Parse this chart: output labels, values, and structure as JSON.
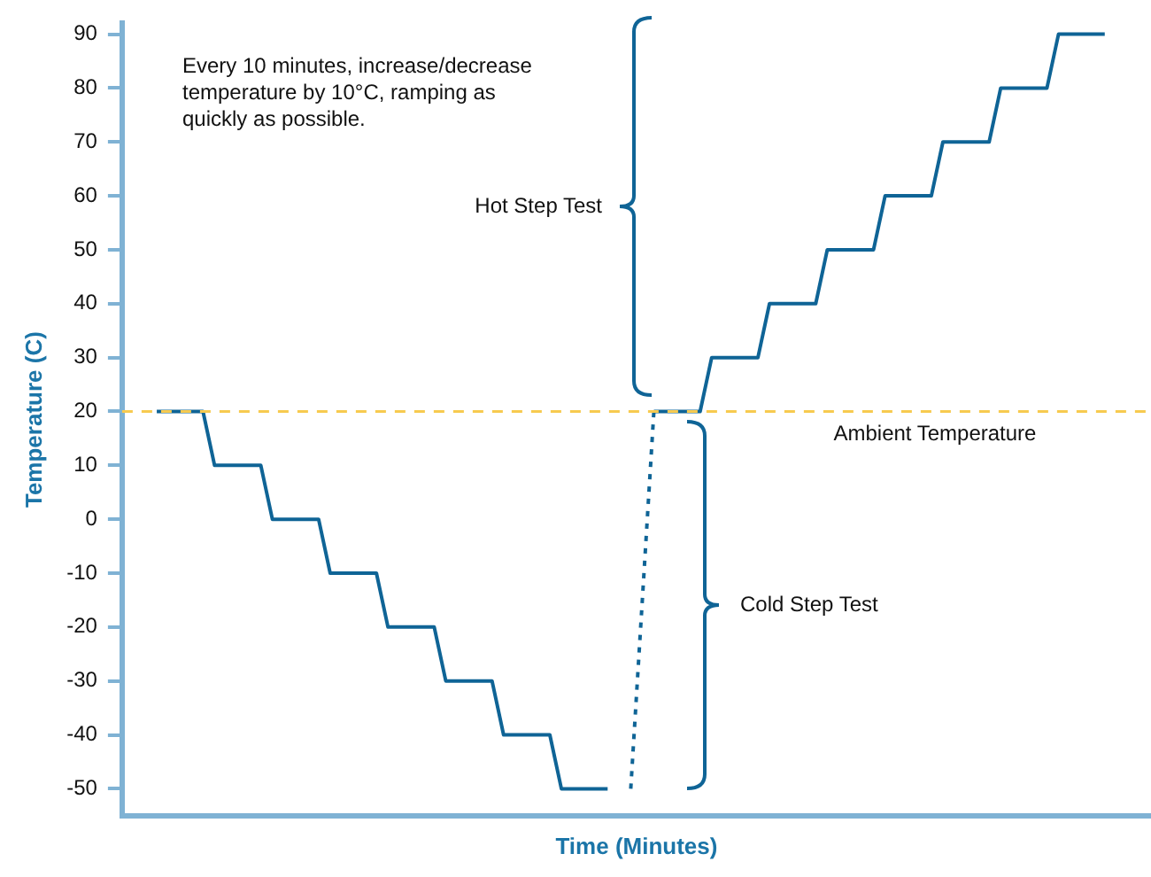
{
  "chart_data": {
    "type": "line",
    "xlabel": "Time (Minutes)",
    "ylabel": "Temperature (C)",
    "categories": [
      null,
      null,
      null,
      null,
      null,
      null,
      null,
      null,
      null,
      null,
      null,
      null,
      null,
      null,
      null,
      null,
      null,
      null,
      null,
      null,
      null,
      null,
      null,
      null,
      null,
      null,
      null,
      null,
      null,
      null,
      null,
      null,
      null,
      null,
      null,
      null,
      null,
      null,
      null,
      null,
      null,
      null,
      null,
      null,
      null,
      null,
      null,
      null,
      null,
      null,
      null,
      null,
      null,
      null,
      null,
      null,
      null,
      null,
      null,
      null,
      null,
      null,
      null,
      null,
      null,
      null,
      null,
      null,
      null,
      null,
      null,
      null,
      null,
      null,
      null,
      null,
      null,
      null,
      null,
      null,
      null,
      null,
      null,
      null,
      null,
      null,
      null,
      null,
      null,
      null
    ],
    "series": [
      {
        "color": "#0f6496",
        "line_style": "solid",
        "values": [
          null,
          null,
          null,
          20,
          20,
          20,
          20,
          20,
          10,
          10,
          10,
          10,
          10,
          0,
          0,
          0,
          0,
          0,
          -10,
          -10,
          -10,
          -10,
          -10,
          -20,
          -20,
          -20,
          -20,
          -20,
          -30,
          -30,
          -30,
          -30,
          -30,
          -40,
          -40,
          -40,
          -40,
          -40,
          -50,
          -50,
          -50,
          -50,
          -50,
          null,
          null,
          null,
          null,
          null,
          null,
          null,
          null,
          null,
          null,
          null,
          null,
          null,
          null,
          null,
          null,
          null,
          null,
          null,
          null,
          null,
          null,
          null,
          null,
          null,
          null,
          null,
          null,
          null,
          null,
          null,
          null,
          null,
          null,
          null,
          null,
          null,
          null,
          null,
          null,
          null,
          null,
          null,
          null,
          null,
          null,
          null
        ]
      },
      {
        "color": "#0f6496",
        "line_style": "dotted",
        "values": [
          null,
          null,
          null,
          null,
          null,
          null,
          null,
          null,
          null,
          null,
          null,
          null,
          null,
          null,
          null,
          null,
          null,
          null,
          null,
          null,
          null,
          null,
          null,
          null,
          null,
          null,
          null,
          null,
          null,
          null,
          null,
          null,
          null,
          null,
          null,
          null,
          null,
          null,
          null,
          null,
          null,
          null,
          null,
          null,
          -50,
          null,
          20,
          null,
          null,
          null,
          null,
          null,
          null,
          null,
          null,
          null,
          null,
          null,
          null,
          null,
          null,
          null,
          null,
          null,
          null,
          null,
          null,
          null,
          null,
          null,
          null,
          null,
          null,
          null,
          null,
          null,
          null,
          null,
          null,
          null,
          null,
          null,
          null,
          null,
          null,
          null,
          null,
          null,
          null,
          null
        ]
      },
      {
        "color": "#0f6496",
        "line_style": "solid",
        "values": [
          null,
          null,
          null,
          null,
          null,
          null,
          null,
          null,
          null,
          null,
          null,
          null,
          null,
          null,
          null,
          null,
          null,
          null,
          null,
          null,
          null,
          null,
          null,
          null,
          null,
          null,
          null,
          null,
          null,
          null,
          null,
          null,
          null,
          null,
          null,
          null,
          null,
          null,
          null,
          null,
          null,
          null,
          null,
          null,
          null,
          null,
          20,
          20,
          20,
          20,
          20,
          30,
          30,
          30,
          30,
          30,
          40,
          40,
          40,
          40,
          40,
          50,
          50,
          50,
          50,
          50,
          60,
          60,
          60,
          60,
          60,
          70,
          70,
          70,
          70,
          70,
          80,
          80,
          80,
          80,
          80,
          90,
          90,
          90,
          90,
          90,
          null,
          null,
          null,
          null
        ]
      }
    ],
    "ylim": [
      -55,
      92
    ],
    "yticks": [
      -50,
      -40,
      -30,
      -20,
      -10,
      0,
      10,
      20,
      30,
      40,
      50,
      60,
      70,
      80,
      90
    ],
    "tick_labels": "y",
    "legend": false,
    "grid": false,
    "marker": "none",
    "ref_lines": [
      {
        "axis": "y",
        "value": 20,
        "label": "Ambient Temperature",
        "color": "#f7ca4f",
        "line_style": "dashed"
      }
    ],
    "annotations": [
      "Every 10 minutes, increase/decrease temperature by 10°C, ramping as quickly as possible.",
      "Hot Step Test",
      "Cold Step Test"
    ]
  }
}
